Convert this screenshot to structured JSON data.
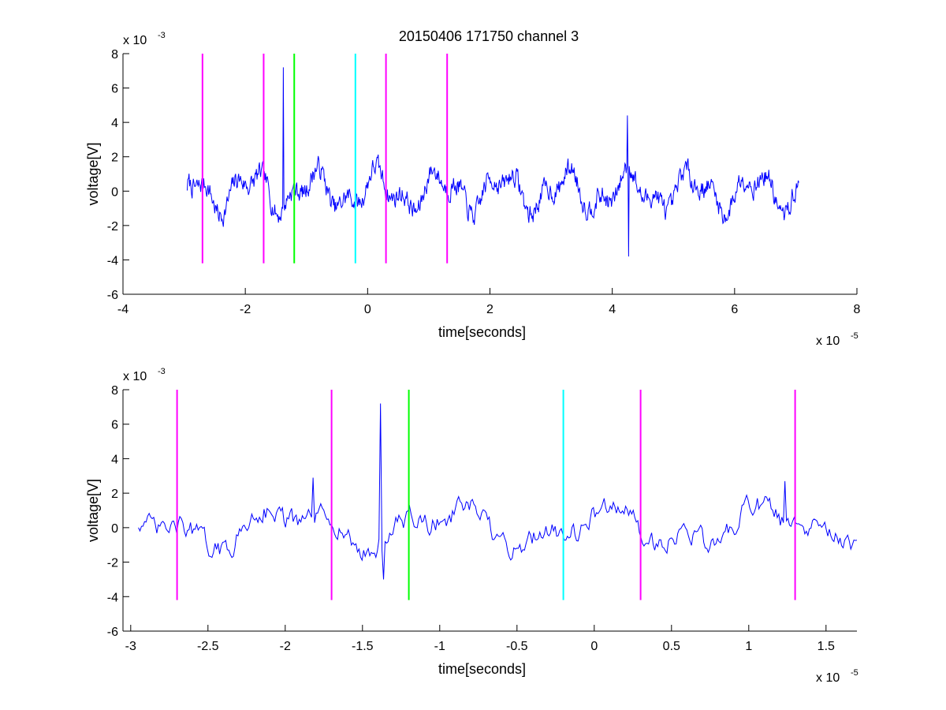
{
  "title": "20150406 171750 channel 3",
  "chart_data": [
    {
      "type": "line",
      "title": "20150406 171750 channel 3",
      "xlabel": "time[seconds]",
      "ylabel": "voltage[V]",
      "x_exponent_label": "x 10",
      "x_exponent": "-5",
      "y_exponent_label": "x 10",
      "y_exponent": "-3",
      "xlim": [
        -4e-05,
        8e-05
      ],
      "ylim": [
        -0.006,
        0.008
      ],
      "x_ticks": [
        -4e-05,
        -2e-05,
        0,
        2e-05,
        4e-05,
        6e-05,
        8e-05
      ],
      "x_tick_labels": [
        "-4",
        "-2",
        "0",
        "2",
        "4",
        "6",
        "8"
      ],
      "y_ticks": [
        -0.006,
        -0.004,
        -0.002,
        0,
        0.002,
        0.004,
        0.006,
        0.008
      ],
      "y_tick_labels": [
        "-6",
        "-4",
        "-2",
        "0",
        "2",
        "4",
        "6",
        "8"
      ],
      "grid": false,
      "signal": {
        "color": "#0000ff",
        "x_start": -2.95e-05,
        "x_end": 7.05e-05,
        "points": 1000,
        "peaks": [
          {
            "x": -1.38e-05,
            "y": 0.0072
          },
          {
            "x": 4.25e-05,
            "y": 0.0044
          },
          {
            "x": 4.25e-05,
            "y": -0.0038
          }
        ]
      },
      "markers": [
        {
          "x": -2.7e-05,
          "color": "#ff00ff",
          "y_range": [
            -0.0042,
            0.008
          ]
        },
        {
          "x": -1.7e-05,
          "color": "#ff00ff",
          "y_range": [
            -0.0042,
            0.008
          ]
        },
        {
          "x": -1.2e-05,
          "color": "#00ff00",
          "y_range": [
            -0.0042,
            0.008
          ]
        },
        {
          "x": -2e-06,
          "color": "#00ffff",
          "y_range": [
            -0.0042,
            0.008
          ]
        },
        {
          "x": 3e-06,
          "color": "#ff00ff",
          "y_range": [
            -0.0042,
            0.008
          ]
        },
        {
          "x": 1.3e-05,
          "color": "#ff00ff",
          "y_range": [
            -0.0042,
            0.008
          ]
        }
      ]
    },
    {
      "type": "line",
      "title": "",
      "xlabel": "time[seconds]",
      "ylabel": "voltage[V]",
      "x_exponent_label": "x 10",
      "x_exponent": "-5",
      "y_exponent_label": "x 10",
      "y_exponent": "-3",
      "xlim": [
        -3.05e-05,
        1.7e-05
      ],
      "ylim": [
        -0.006,
        0.008
      ],
      "x_ticks": [
        -3e-05,
        -2.5e-05,
        -2e-05,
        -1.5e-05,
        -1e-05,
        -5e-06,
        0,
        5e-06,
        1e-05,
        1.5e-05
      ],
      "x_tick_labels": [
        "-3",
        "-2.5",
        "-2",
        "-1.5",
        "-1",
        "-0.5",
        "0",
        "0.5",
        "1",
        "1.5"
      ],
      "y_ticks": [
        -0.006,
        -0.004,
        -0.002,
        0,
        0.002,
        0.004,
        0.006,
        0.008
      ],
      "y_tick_labels": [
        "-6",
        "-4",
        "-2",
        "0",
        "2",
        "4",
        "6",
        "8"
      ],
      "grid": false,
      "signal": {
        "color": "#0000ff",
        "x_start": -2.95e-05,
        "x_end": 1.7e-05,
        "points": 470,
        "peaks": [
          {
            "x": -1.38e-05,
            "y": 0.0072
          },
          {
            "x": -1.82e-05,
            "y": 0.0029
          },
          {
            "x": 1.23e-05,
            "y": 0.0027
          },
          {
            "x": -1.38e-05,
            "y": -0.003
          }
        ]
      },
      "markers": [
        {
          "x": -2.7e-05,
          "color": "#ff00ff",
          "y_range": [
            -0.0042,
            0.008
          ]
        },
        {
          "x": -1.7e-05,
          "color": "#ff00ff",
          "y_range": [
            -0.0042,
            0.008
          ]
        },
        {
          "x": -1.2e-05,
          "color": "#00ff00",
          "y_range": [
            -0.0042,
            0.008
          ]
        },
        {
          "x": -2e-06,
          "color": "#00ffff",
          "y_range": [
            -0.0042,
            0.008
          ]
        },
        {
          "x": 3e-06,
          "color": "#ff00ff",
          "y_range": [
            -0.0042,
            0.008
          ]
        },
        {
          "x": 1.3e-05,
          "color": "#ff00ff",
          "y_range": [
            -0.0042,
            0.008
          ]
        }
      ]
    }
  ]
}
